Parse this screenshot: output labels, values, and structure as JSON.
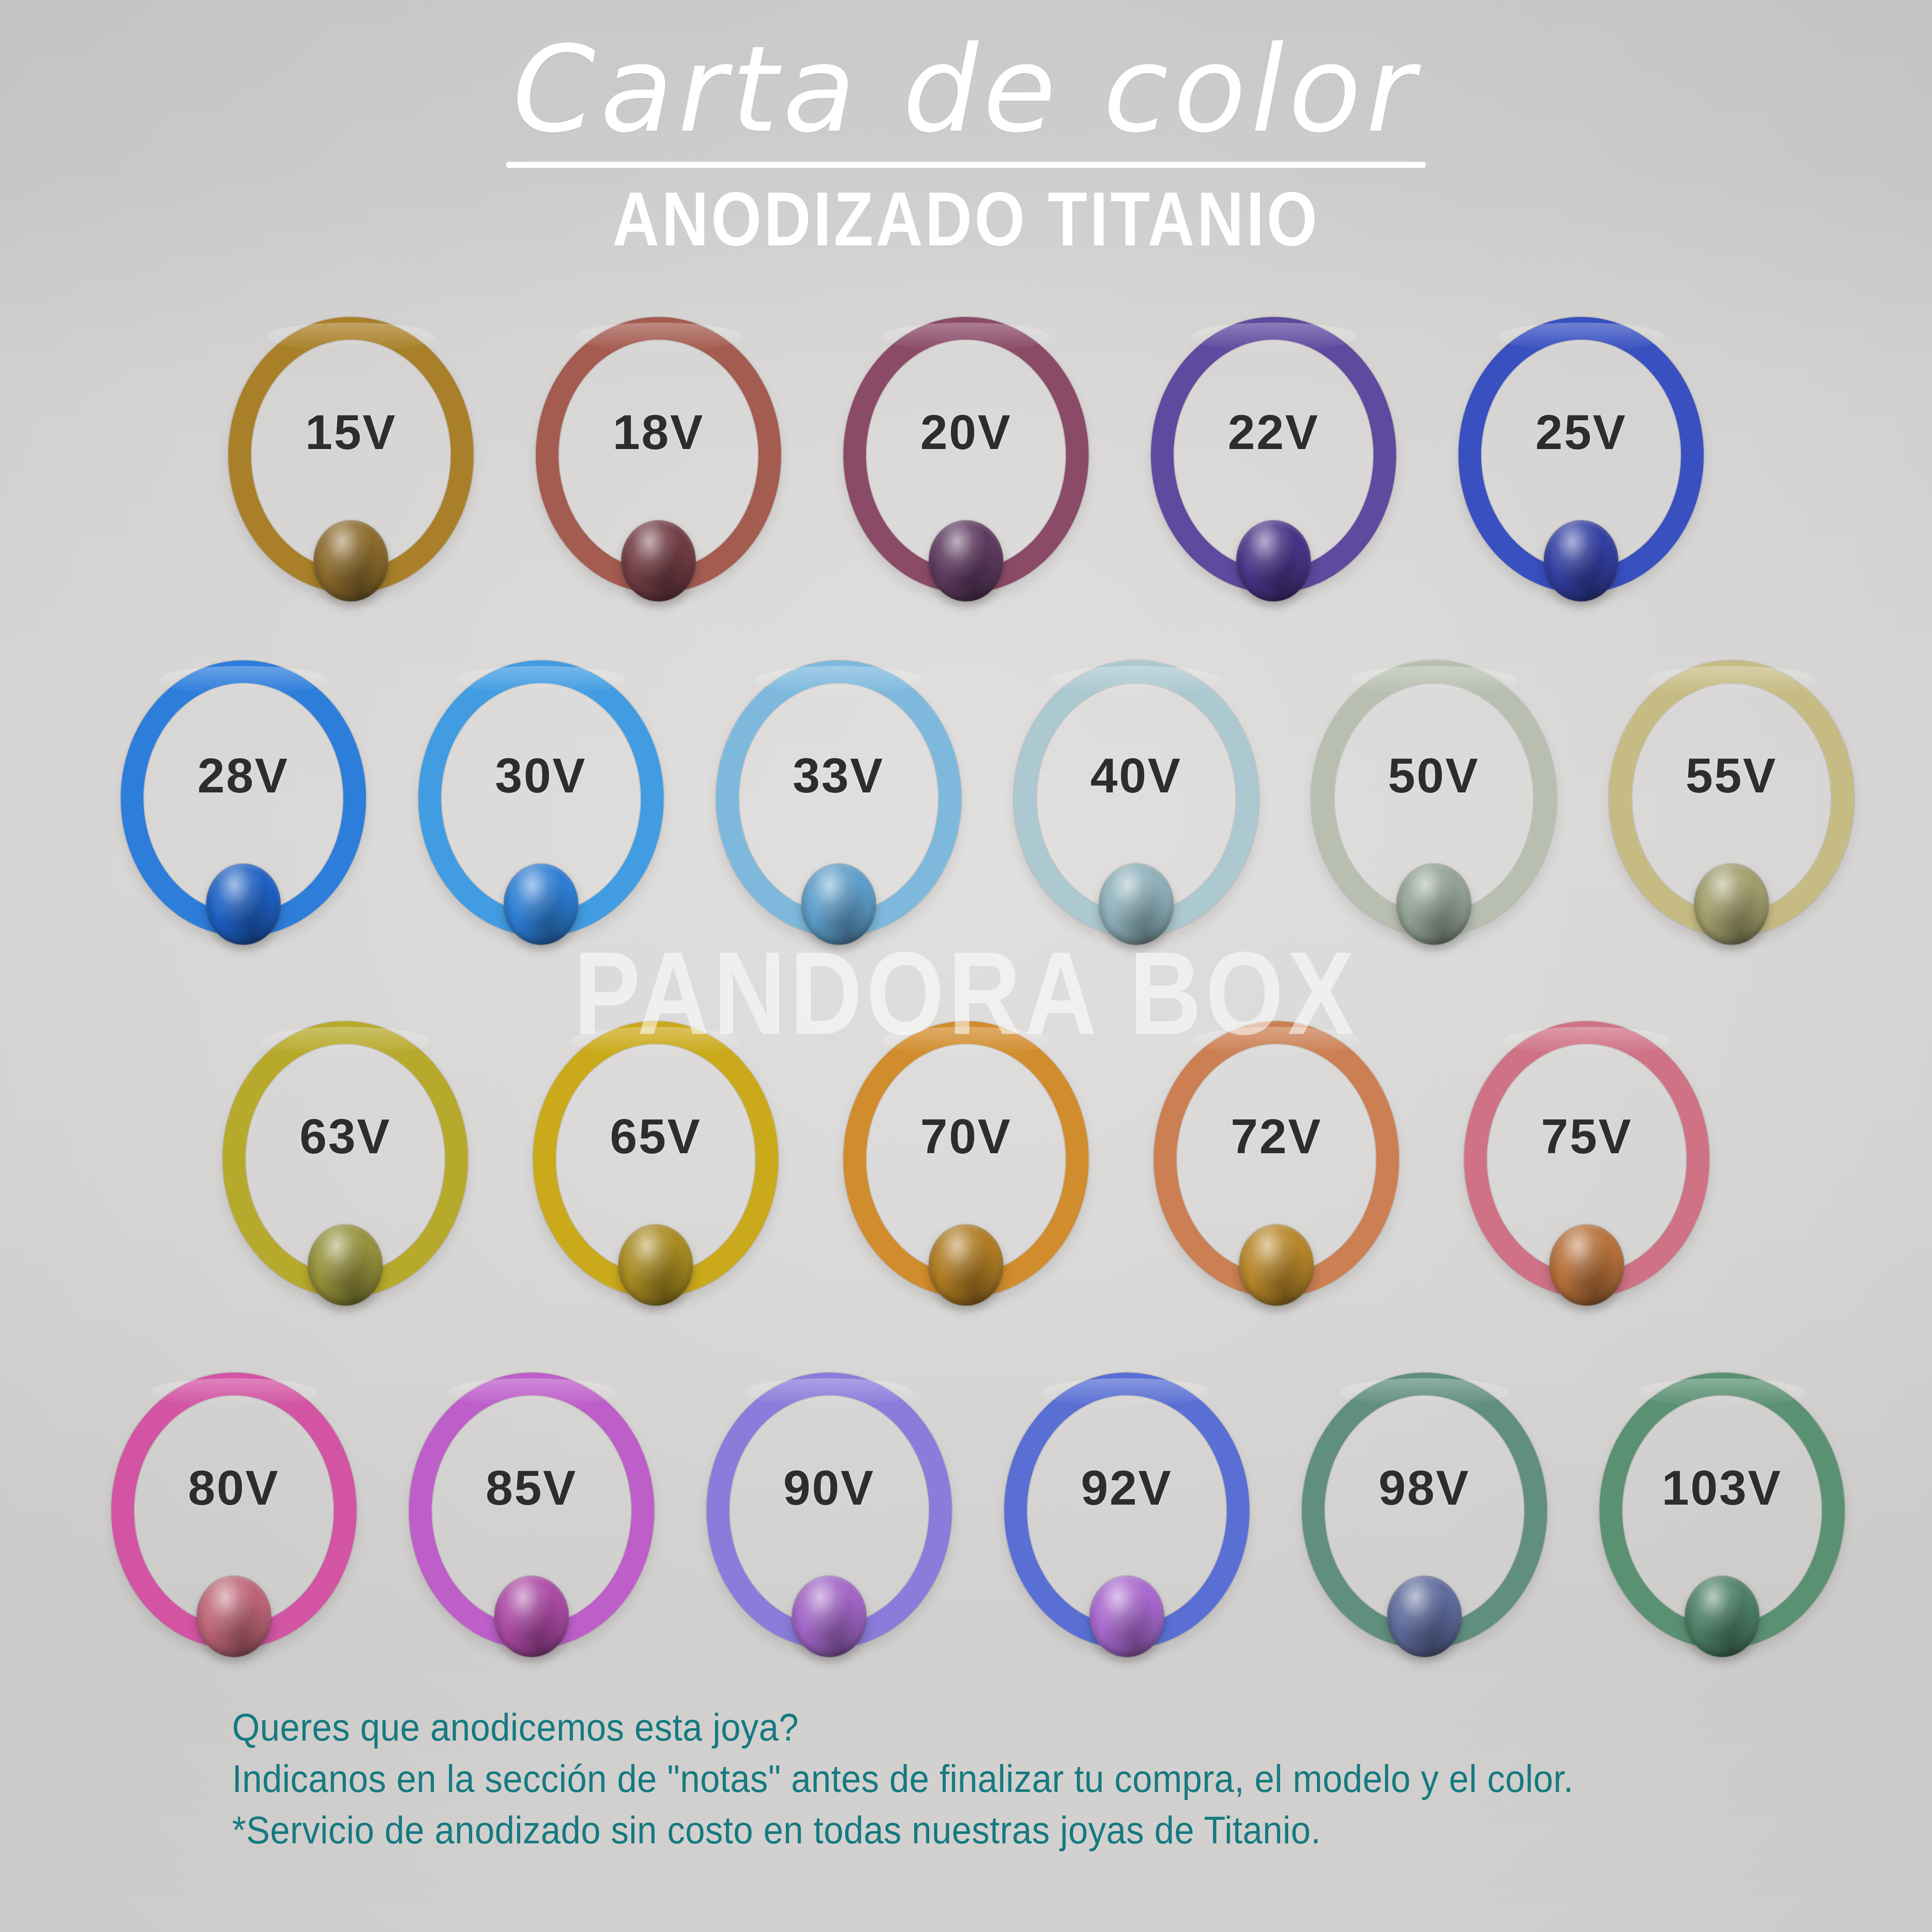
{
  "header": {
    "title": "Carta de color",
    "subtitle": "ANODIZADO TITANIO"
  },
  "watermark": "PANDORA BOX",
  "colors": {
    "background_top": "#c9c9c8",
    "background_photo": "#d8d6d4",
    "title_text": "#ffffff",
    "subtitle_text": "#ffffff",
    "watermark_text": "#ffffff",
    "label_text": "#2d2d2e",
    "footer_text": "#157a80"
  },
  "rows": [
    {
      "items": [
        {
          "label": "15V",
          "ring_color": "#a8802c",
          "ball_color": "#8a6a2e"
        },
        {
          "label": "18V",
          "ring_color": "#a25b51",
          "ball_color": "#703c44"
        },
        {
          "label": "20V",
          "ring_color": "#8a4b67",
          "ball_color": "#5c3a5e"
        },
        {
          "label": "22V",
          "ring_color": "#5e4a9c",
          "ball_color": "#483484"
        },
        {
          "label": "25V",
          "ring_color": "#3950bd",
          "ball_color": "#323f9e"
        }
      ]
    },
    {
      "items": [
        {
          "label": "28V",
          "ring_color": "#2f7dd8",
          "ball_color": "#2060c0"
        },
        {
          "label": "30V",
          "ring_color": "#439cdf",
          "ball_color": "#2f7dd0"
        },
        {
          "label": "33V",
          "ring_color": "#7fb9dc",
          "ball_color": "#5f9dc8"
        },
        {
          "label": "40V",
          "ring_color": "#adc8d1",
          "ball_color": "#8fb0ba"
        },
        {
          "label": "50V",
          "ring_color": "#b8bfb0",
          "ball_color": "#93a295"
        },
        {
          "label": "55V",
          "ring_color": "#c6bc85",
          "ball_color": "#a09d6d"
        }
      ]
    },
    {
      "items": [
        {
          "label": "63V",
          "ring_color": "#b6a92f",
          "ball_color": "#94903e"
        },
        {
          "label": "65V",
          "ring_color": "#c9a91f",
          "ball_color": "#a68a24"
        },
        {
          "label": "70V",
          "ring_color": "#cf8c30",
          "ball_color": "#ad7b26"
        },
        {
          "label": "72V",
          "ring_color": "#c97f54",
          "ball_color": "#b5862c"
        },
        {
          "label": "75V",
          "ring_color": "#cd7386",
          "ball_color": "#b4703c"
        }
      ]
    },
    {
      "items": [
        {
          "label": "80V",
          "ring_color": "#cf55a2",
          "ball_color": "#bb6677"
        },
        {
          "label": "85V",
          "ring_color": "#bb5fc7",
          "ball_color": "#a84ba2"
        },
        {
          "label": "90V",
          "ring_color": "#8b7bd8",
          "ball_color": "#a066c4"
        },
        {
          "label": "92V",
          "ring_color": "#5a6fd1",
          "ball_color": "#a769cb"
        },
        {
          "label": "98V",
          "ring_color": "#628f7e",
          "ball_color": "#5d6a9a"
        },
        {
          "label": "103V",
          "ring_color": "#5c9173",
          "ball_color": "#4d7f67"
        }
      ]
    }
  ],
  "footer": {
    "lines": [
      "Queres que anodicemos esta joya?",
      "Indicanos en la sección de \"notas\" antes de finalizar tu compra, el modelo y el color.",
      "*Servicio de anodizado sin costo en todas nuestras joyas de Titanio."
    ]
  }
}
